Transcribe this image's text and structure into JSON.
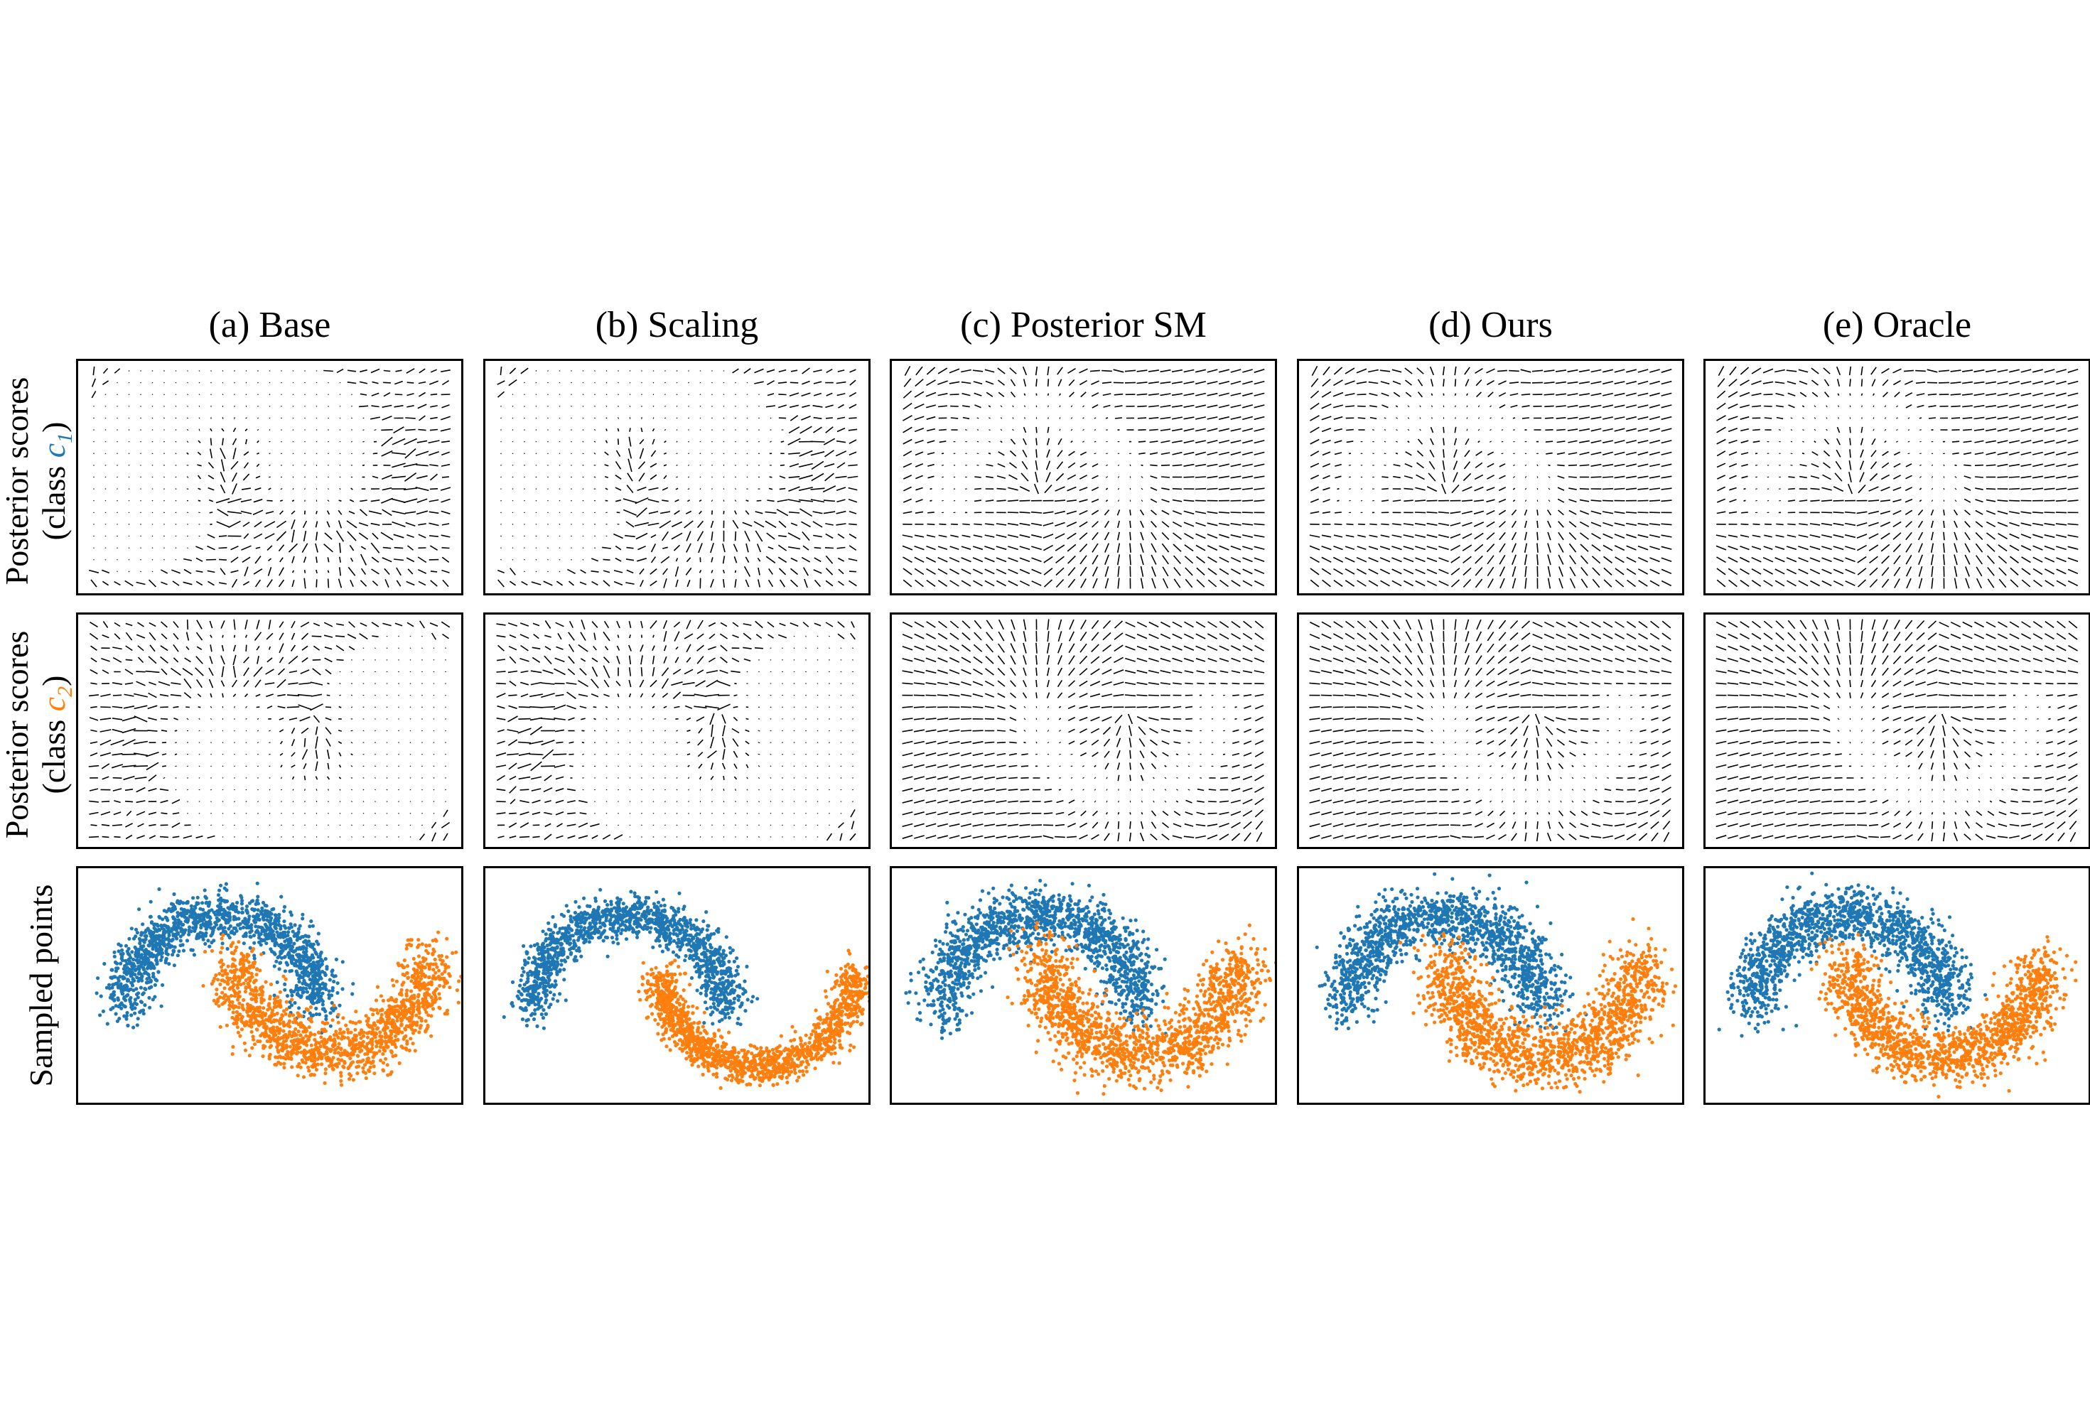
{
  "figure": {
    "column_titles": [
      "(a) Base",
      "(b) Scaling",
      "(c) Posterior SM",
      "(d) Ours",
      "(e) Oracle"
    ],
    "row_labels": {
      "posterior_c1": {
        "line1": "Posterior scores",
        "line2_prefix": "(class ",
        "symbol": "c",
        "subscript": "1",
        "line2_suffix": ")"
      },
      "posterior_c2": {
        "line1": "Posterior scores",
        "line2_prefix": "(class ",
        "symbol": "c",
        "subscript": "2",
        "line2_suffix": ")"
      },
      "samples": "Sampled points"
    }
  },
  "colors": {
    "class_c1": "#1f77b4",
    "class_c2": "#ff7f0e",
    "arrow": "#000000"
  },
  "chart_data": [
    {
      "type": "quiver",
      "method": "(a) Base",
      "row": "Posterior scores (class c1)",
      "field": "learned",
      "grid_cols": 31,
      "grid_rows": 19,
      "xlim": [
        -1.5,
        2.5
      ],
      "ylim": [
        -1.0,
        1.5
      ],
      "quality": "weak",
      "x_offset": 0.0
    },
    {
      "type": "quiver",
      "method": "(b) Scaling",
      "row": "Posterior scores (class c1)",
      "field": "learned",
      "grid_cols": 31,
      "grid_rows": 19,
      "xlim": [
        -1.5,
        2.5
      ],
      "ylim": [
        -1.0,
        1.5
      ],
      "quality": "weak",
      "x_offset": 0.0
    },
    {
      "type": "quiver",
      "method": "(c) Posterior SM",
      "row": "Posterior scores (class c1)",
      "field": "smooth",
      "grid_cols": 31,
      "grid_rows": 19,
      "xlim": [
        -1.5,
        2.5
      ],
      "ylim": [
        -1.0,
        1.5
      ],
      "quality": "good"
    },
    {
      "type": "quiver",
      "method": "(d) Ours",
      "row": "Posterior scores (class c1)",
      "field": "smooth",
      "grid_cols": 31,
      "grid_rows": 19,
      "xlim": [
        -1.5,
        2.5
      ],
      "ylim": [
        -1.0,
        1.5
      ],
      "quality": "good"
    },
    {
      "type": "quiver",
      "method": "(e) Oracle",
      "row": "Posterior scores (class c1)",
      "field": "smooth",
      "grid_cols": 31,
      "grid_rows": 19,
      "xlim": [
        -1.5,
        2.5
      ],
      "ylim": [
        -1.0,
        1.5
      ],
      "quality": "good"
    },
    {
      "type": "quiver",
      "method": "(a) Base",
      "row": "Posterior scores (class c2)",
      "field": "learned",
      "grid_cols": 31,
      "grid_rows": 19,
      "xlim": [
        -1.5,
        2.5
      ],
      "ylim": [
        -1.0,
        1.5
      ],
      "quality": "weak"
    },
    {
      "type": "quiver",
      "method": "(b) Scaling",
      "row": "Posterior scores (class c2)",
      "field": "learned",
      "grid_cols": 31,
      "grid_rows": 19,
      "xlim": [
        -1.5,
        2.5
      ],
      "ylim": [
        -1.0,
        1.5
      ],
      "quality": "weak"
    },
    {
      "type": "quiver",
      "method": "(c) Posterior SM",
      "row": "Posterior scores (class c2)",
      "field": "smooth",
      "grid_cols": 31,
      "grid_rows": 19,
      "xlim": [
        -1.5,
        2.5
      ],
      "ylim": [
        -1.0,
        1.5
      ],
      "quality": "good"
    },
    {
      "type": "quiver",
      "method": "(d) Ours",
      "row": "Posterior scores (class c2)",
      "field": "smooth",
      "grid_cols": 31,
      "grid_rows": 19,
      "xlim": [
        -1.5,
        2.5
      ],
      "ylim": [
        -1.0,
        1.5
      ],
      "quality": "good"
    },
    {
      "type": "quiver",
      "method": "(e) Oracle",
      "row": "Posterior scores (class c2)",
      "field": "smooth",
      "grid_cols": 31,
      "grid_rows": 19,
      "xlim": [
        -1.5,
        2.5
      ],
      "ylim": [
        -1.0,
        1.5
      ],
      "quality": "good"
    },
    {
      "type": "scatter",
      "method": "(a) Base",
      "row": "Sampled points",
      "xlim": [
        -1.5,
        2.5
      ],
      "ylim": [
        -1.0,
        1.5
      ],
      "series": [
        {
          "name": "class c1",
          "color": "#1f77b4",
          "n": 1400,
          "noise": 0.13,
          "shift_x": 0.0,
          "shift_y": 0.0
        },
        {
          "name": "class c2",
          "color": "#ff7f0e",
          "n": 1400,
          "noise": 0.15,
          "shift_x": 0.15,
          "shift_y": 0.05
        }
      ]
    },
    {
      "type": "scatter",
      "method": "(b) Scaling",
      "row": "Sampled points",
      "xlim": [
        -1.5,
        2.5
      ],
      "ylim": [
        -1.0,
        1.5
      ],
      "series": [
        {
          "name": "class c1",
          "color": "#1f77b4",
          "n": 1400,
          "noise": 0.11,
          "shift_x": 0.0,
          "shift_y": 0.0
        },
        {
          "name": "class c2",
          "color": "#ff7f0e",
          "n": 1400,
          "noise": 0.1,
          "shift_x": 0.35,
          "shift_y": -0.1
        }
      ]
    },
    {
      "type": "scatter",
      "method": "(c) Posterior SM",
      "row": "Sampled points",
      "xlim": [
        -1.5,
        2.5
      ],
      "ylim": [
        -1.0,
        1.5
      ],
      "series": [
        {
          "name": "class c1",
          "color": "#1f77b4",
          "n": 1400,
          "noise": 0.15,
          "shift_x": 0.05,
          "shift_y": 0.0
        },
        {
          "name": "class c2",
          "color": "#ff7f0e",
          "n": 1400,
          "noise": 0.17,
          "shift_x": 0.1,
          "shift_y": 0.05
        }
      ]
    },
    {
      "type": "scatter",
      "method": "(d) Ours",
      "row": "Sampled points",
      "xlim": [
        -1.5,
        2.5
      ],
      "ylim": [
        -1.0,
        1.5
      ],
      "series": [
        {
          "name": "class c1",
          "color": "#1f77b4",
          "n": 1400,
          "noise": 0.15,
          "shift_x": 0.0,
          "shift_y": 0.0
        },
        {
          "name": "class c2",
          "color": "#ff7f0e",
          "n": 1400,
          "noise": 0.17,
          "shift_x": 0.05,
          "shift_y": 0.0
        }
      ]
    },
    {
      "type": "scatter",
      "method": "(e) Oracle",
      "row": "Sampled points",
      "xlim": [
        -1.5,
        2.5
      ],
      "ylim": [
        -1.0,
        1.5
      ],
      "series": [
        {
          "name": "class c1",
          "color": "#1f77b4",
          "n": 1400,
          "noise": 0.15,
          "shift_x": 0.0,
          "shift_y": 0.0
        },
        {
          "name": "class c2",
          "color": "#ff7f0e",
          "n": 1400,
          "noise": 0.15,
          "shift_x": 0.0,
          "shift_y": 0.0
        }
      ]
    }
  ]
}
